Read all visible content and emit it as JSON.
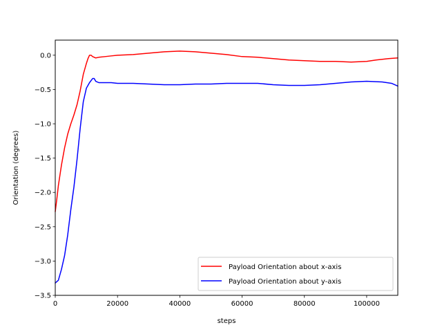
{
  "chart_data": {
    "type": "line",
    "title": "",
    "xlabel": "steps",
    "ylabel": "Orientation (degrees)",
    "xlim": [
      0,
      110000
    ],
    "ylim": [
      -3.5,
      0.22
    ],
    "x_ticks": [
      0,
      20000,
      40000,
      60000,
      80000,
      100000
    ],
    "x_tick_labels": [
      "0",
      "20000",
      "40000",
      "60000",
      "80000",
      "100000"
    ],
    "y_ticks": [
      -3.5,
      -3.0,
      -2.5,
      -2.0,
      -1.5,
      -1.0,
      -0.5,
      0.0
    ],
    "y_tick_labels": [
      "−3.5",
      "−3.0",
      "−2.5",
      "−2.0",
      "−1.5",
      "−1.0",
      "−0.5",
      "0.0"
    ],
    "grid": false,
    "legend_position": "lower-right",
    "series": [
      {
        "name": "Payload Orientation about x-axis",
        "color": "#ff0000",
        "x": [
          0,
          500,
          1000,
          2000,
          3000,
          4000,
          5000,
          6000,
          7000,
          8000,
          9000,
          10000,
          10500,
          11000,
          11500,
          12000,
          13000,
          14000,
          16000,
          18000,
          20000,
          25000,
          30000,
          35000,
          40000,
          45000,
          50000,
          55000,
          60000,
          65000,
          70000,
          75000,
          80000,
          85000,
          90000,
          95000,
          100000,
          103000,
          105000,
          107000,
          110000
        ],
        "y": [
          -2.28,
          -2.1,
          -1.9,
          -1.6,
          -1.35,
          -1.15,
          -1.0,
          -0.87,
          -0.72,
          -0.52,
          -0.28,
          -0.12,
          -0.05,
          0.0,
          0.0,
          -0.02,
          -0.04,
          -0.03,
          -0.02,
          -0.01,
          0.0,
          0.01,
          0.03,
          0.05,
          0.06,
          0.05,
          0.03,
          0.01,
          -0.02,
          -0.03,
          -0.05,
          -0.07,
          -0.08,
          -0.09,
          -0.09,
          -0.1,
          -0.09,
          -0.07,
          -0.06,
          -0.05,
          -0.04
        ]
      },
      {
        "name": "Payload Orientation about y-axis",
        "color": "#0000ff",
        "x": [
          0,
          500,
          1000,
          2000,
          3000,
          4000,
          5000,
          6000,
          7000,
          8000,
          9000,
          10000,
          11000,
          12000,
          12500,
          13000,
          14000,
          16000,
          18000,
          20000,
          25000,
          30000,
          35000,
          40000,
          45000,
          50000,
          55000,
          60000,
          65000,
          70000,
          75000,
          80000,
          85000,
          90000,
          95000,
          100000,
          105000,
          108000,
          110000
        ],
        "y": [
          -3.32,
          -3.3,
          -3.28,
          -3.12,
          -2.92,
          -2.62,
          -2.25,
          -1.92,
          -1.52,
          -1.07,
          -0.68,
          -0.48,
          -0.4,
          -0.34,
          -0.34,
          -0.38,
          -0.4,
          -0.4,
          -0.4,
          -0.41,
          -0.41,
          -0.42,
          -0.43,
          -0.43,
          -0.42,
          -0.42,
          -0.41,
          -0.41,
          -0.41,
          -0.43,
          -0.44,
          -0.44,
          -0.43,
          -0.41,
          -0.39,
          -0.38,
          -0.39,
          -0.41,
          -0.45
        ]
      }
    ]
  }
}
